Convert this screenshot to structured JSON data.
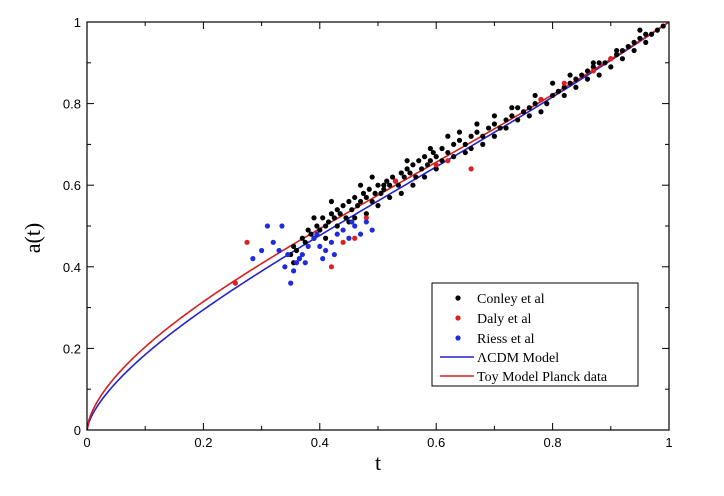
{
  "chart_data": {
    "type": "scatter",
    "title": "",
    "xlabel": "t",
    "ylabel": "a(t)",
    "xlim": [
      0,
      1
    ],
    "ylim": [
      0,
      1
    ],
    "x_ticks": [
      "0",
      "0.2",
      "0.4",
      "0.6",
      "0.8",
      "1"
    ],
    "y_ticks": [
      "0",
      "0.2",
      "0.4",
      "0.6",
      "0.8",
      "1"
    ],
    "grid": false,
    "legend_position": "bottom-right",
    "series": [
      {
        "name": "Conley et al",
        "kind": "points",
        "color": "#000000",
        "points": [
          [
            0.35,
            0.43
          ],
          [
            0.355,
            0.45
          ],
          [
            0.36,
            0.44
          ],
          [
            0.365,
            0.42
          ],
          [
            0.37,
            0.47
          ],
          [
            0.375,
            0.46
          ],
          [
            0.38,
            0.49
          ],
          [
            0.385,
            0.48
          ],
          [
            0.39,
            0.47
          ],
          [
            0.395,
            0.5
          ],
          [
            0.4,
            0.49
          ],
          [
            0.405,
            0.52
          ],
          [
            0.41,
            0.5
          ],
          [
            0.415,
            0.51
          ],
          [
            0.42,
            0.53
          ],
          [
            0.425,
            0.52
          ],
          [
            0.43,
            0.54
          ],
          [
            0.435,
            0.53
          ],
          [
            0.44,
            0.55
          ],
          [
            0.445,
            0.52
          ],
          [
            0.45,
            0.56
          ],
          [
            0.455,
            0.54
          ],
          [
            0.46,
            0.57
          ],
          [
            0.465,
            0.55
          ],
          [
            0.47,
            0.56
          ],
          [
            0.475,
            0.58
          ],
          [
            0.48,
            0.57
          ],
          [
            0.485,
            0.59
          ],
          [
            0.49,
            0.56
          ],
          [
            0.495,
            0.58
          ],
          [
            0.5,
            0.6
          ],
          [
            0.505,
            0.58
          ],
          [
            0.51,
            0.59
          ],
          [
            0.515,
            0.61
          ],
          [
            0.52,
            0.6
          ],
          [
            0.525,
            0.62
          ],
          [
            0.53,
            0.61
          ],
          [
            0.535,
            0.6
          ],
          [
            0.54,
            0.63
          ],
          [
            0.545,
            0.62
          ],
          [
            0.55,
            0.64
          ],
          [
            0.555,
            0.63
          ],
          [
            0.56,
            0.65
          ],
          [
            0.565,
            0.62
          ],
          [
            0.57,
            0.66
          ],
          [
            0.575,
            0.64
          ],
          [
            0.58,
            0.67
          ],
          [
            0.585,
            0.65
          ],
          [
            0.59,
            0.66
          ],
          [
            0.595,
            0.68
          ],
          [
            0.6,
            0.67
          ],
          [
            0.61,
            0.69
          ],
          [
            0.62,
            0.68
          ],
          [
            0.63,
            0.7
          ],
          [
            0.64,
            0.71
          ],
          [
            0.65,
            0.7
          ],
          [
            0.66,
            0.72
          ],
          [
            0.67,
            0.73
          ],
          [
            0.68,
            0.72
          ],
          [
            0.69,
            0.74
          ],
          [
            0.7,
            0.75
          ],
          [
            0.71,
            0.74
          ],
          [
            0.72,
            0.76
          ],
          [
            0.73,
            0.77
          ],
          [
            0.74,
            0.76
          ],
          [
            0.75,
            0.78
          ],
          [
            0.76,
            0.79
          ],
          [
            0.77,
            0.8
          ],
          [
            0.78,
            0.81
          ],
          [
            0.79,
            0.8
          ],
          [
            0.8,
            0.82
          ],
          [
            0.81,
            0.83
          ],
          [
            0.82,
            0.84
          ],
          [
            0.83,
            0.85
          ],
          [
            0.84,
            0.86
          ],
          [
            0.85,
            0.87
          ],
          [
            0.86,
            0.88
          ],
          [
            0.87,
            0.89
          ],
          [
            0.88,
            0.9
          ],
          [
            0.89,
            0.9
          ],
          [
            0.9,
            0.91
          ],
          [
            0.91,
            0.92
          ],
          [
            0.92,
            0.93
          ],
          [
            0.93,
            0.94
          ],
          [
            0.94,
            0.95
          ],
          [
            0.95,
            0.96
          ],
          [
            0.96,
            0.97
          ],
          [
            0.97,
            0.97
          ],
          [
            0.98,
            0.98
          ],
          [
            0.99,
            0.99
          ],
          [
            0.355,
            0.41
          ],
          [
            0.41,
            0.47
          ],
          [
            0.43,
            0.5
          ],
          [
            0.45,
            0.51
          ],
          [
            0.46,
            0.52
          ],
          [
            0.48,
            0.53
          ],
          [
            0.5,
            0.55
          ],
          [
            0.52,
            0.57
          ],
          [
            0.54,
            0.58
          ],
          [
            0.56,
            0.6
          ],
          [
            0.58,
            0.62
          ],
          [
            0.6,
            0.64
          ],
          [
            0.61,
            0.66
          ],
          [
            0.63,
            0.67
          ],
          [
            0.65,
            0.68
          ],
          [
            0.66,
            0.69
          ],
          [
            0.68,
            0.7
          ],
          [
            0.7,
            0.72
          ],
          [
            0.72,
            0.74
          ],
          [
            0.74,
            0.79
          ],
          [
            0.76,
            0.77
          ],
          [
            0.78,
            0.78
          ],
          [
            0.82,
            0.82
          ],
          [
            0.84,
            0.84
          ],
          [
            0.86,
            0.86
          ],
          [
            0.88,
            0.87
          ],
          [
            0.9,
            0.89
          ],
          [
            0.92,
            0.91
          ],
          [
            0.94,
            0.93
          ],
          [
            0.96,
            0.95
          ],
          [
            0.39,
            0.52
          ],
          [
            0.42,
            0.56
          ],
          [
            0.47,
            0.6
          ],
          [
            0.49,
            0.62
          ],
          [
            0.51,
            0.6
          ],
          [
            0.55,
            0.66
          ],
          [
            0.59,
            0.69
          ],
          [
            0.62,
            0.72
          ],
          [
            0.64,
            0.73
          ],
          [
            0.67,
            0.75
          ],
          [
            0.7,
            0.77
          ],
          [
            0.73,
            0.79
          ],
          [
            0.77,
            0.82
          ],
          [
            0.8,
            0.85
          ],
          [
            0.83,
            0.87
          ],
          [
            0.87,
            0.9
          ],
          [
            0.91,
            0.93
          ],
          [
            0.95,
            0.98
          ]
        ]
      },
      {
        "name": "Daly et al",
        "kind": "points",
        "color": "#e02020",
        "points": [
          [
            0.255,
            0.36
          ],
          [
            0.275,
            0.46
          ],
          [
            0.42,
            0.4
          ],
          [
            0.44,
            0.46
          ],
          [
            0.46,
            0.47
          ],
          [
            0.48,
            0.52
          ],
          [
            0.53,
            0.61
          ],
          [
            0.6,
            0.65
          ],
          [
            0.62,
            0.66
          ],
          [
            0.66,
            0.64
          ],
          [
            0.78,
            0.81
          ],
          [
            0.82,
            0.85
          ],
          [
            0.87,
            0.88
          ],
          [
            0.9,
            0.91
          ]
        ]
      },
      {
        "name": "Riess et al",
        "kind": "points",
        "color": "#1f2bdc",
        "points": [
          [
            0.285,
            0.42
          ],
          [
            0.3,
            0.44
          ],
          [
            0.31,
            0.5
          ],
          [
            0.32,
            0.46
          ],
          [
            0.33,
            0.44
          ],
          [
            0.34,
            0.4
          ],
          [
            0.35,
            0.36
          ],
          [
            0.355,
            0.39
          ],
          [
            0.36,
            0.41
          ],
          [
            0.365,
            0.42
          ],
          [
            0.37,
            0.43
          ],
          [
            0.375,
            0.41
          ],
          [
            0.38,
            0.45
          ],
          [
            0.39,
            0.47
          ],
          [
            0.4,
            0.45
          ],
          [
            0.41,
            0.44
          ],
          [
            0.42,
            0.46
          ],
          [
            0.43,
            0.48
          ],
          [
            0.44,
            0.49
          ],
          [
            0.45,
            0.47
          ],
          [
            0.46,
            0.5
          ],
          [
            0.47,
            0.48
          ],
          [
            0.48,
            0.51
          ],
          [
            0.49,
            0.49
          ],
          [
            0.335,
            0.5
          ],
          [
            0.345,
            0.43
          ],
          [
            0.395,
            0.48
          ],
          [
            0.405,
            0.42
          ],
          [
            0.425,
            0.43
          ],
          [
            0.455,
            0.51
          ]
        ]
      },
      {
        "name": "ΛCDM Model",
        "kind": "line",
        "color": "#2424c8",
        "function": "lcdm",
        "points": [
          [
            0,
            0
          ],
          [
            0.02,
            0.08
          ],
          [
            0.05,
            0.14
          ],
          [
            0.1,
            0.21
          ],
          [
            0.15,
            0.27
          ],
          [
            0.2,
            0.32
          ],
          [
            0.25,
            0.37
          ],
          [
            0.3,
            0.41
          ],
          [
            0.35,
            0.45
          ],
          [
            0.4,
            0.5
          ],
          [
            0.5,
            0.58
          ],
          [
            0.6,
            0.66
          ],
          [
            0.7,
            0.75
          ],
          [
            0.8,
            0.83
          ],
          [
            0.9,
            0.91
          ],
          [
            1,
            1
          ]
        ]
      },
      {
        "name": "Toy Model Planck data",
        "kind": "line",
        "color": "#d42020",
        "function": "toy",
        "points": [
          [
            0,
            0
          ],
          [
            0.02,
            0.1
          ],
          [
            0.05,
            0.16
          ],
          [
            0.1,
            0.23
          ],
          [
            0.15,
            0.29
          ],
          [
            0.2,
            0.34
          ],
          [
            0.25,
            0.38
          ],
          [
            0.3,
            0.43
          ],
          [
            0.35,
            0.47
          ],
          [
            0.4,
            0.51
          ],
          [
            0.5,
            0.59
          ],
          [
            0.6,
            0.67
          ],
          [
            0.7,
            0.75
          ],
          [
            0.8,
            0.83
          ],
          [
            0.9,
            0.91
          ],
          [
            1,
            1
          ]
        ]
      }
    ]
  }
}
